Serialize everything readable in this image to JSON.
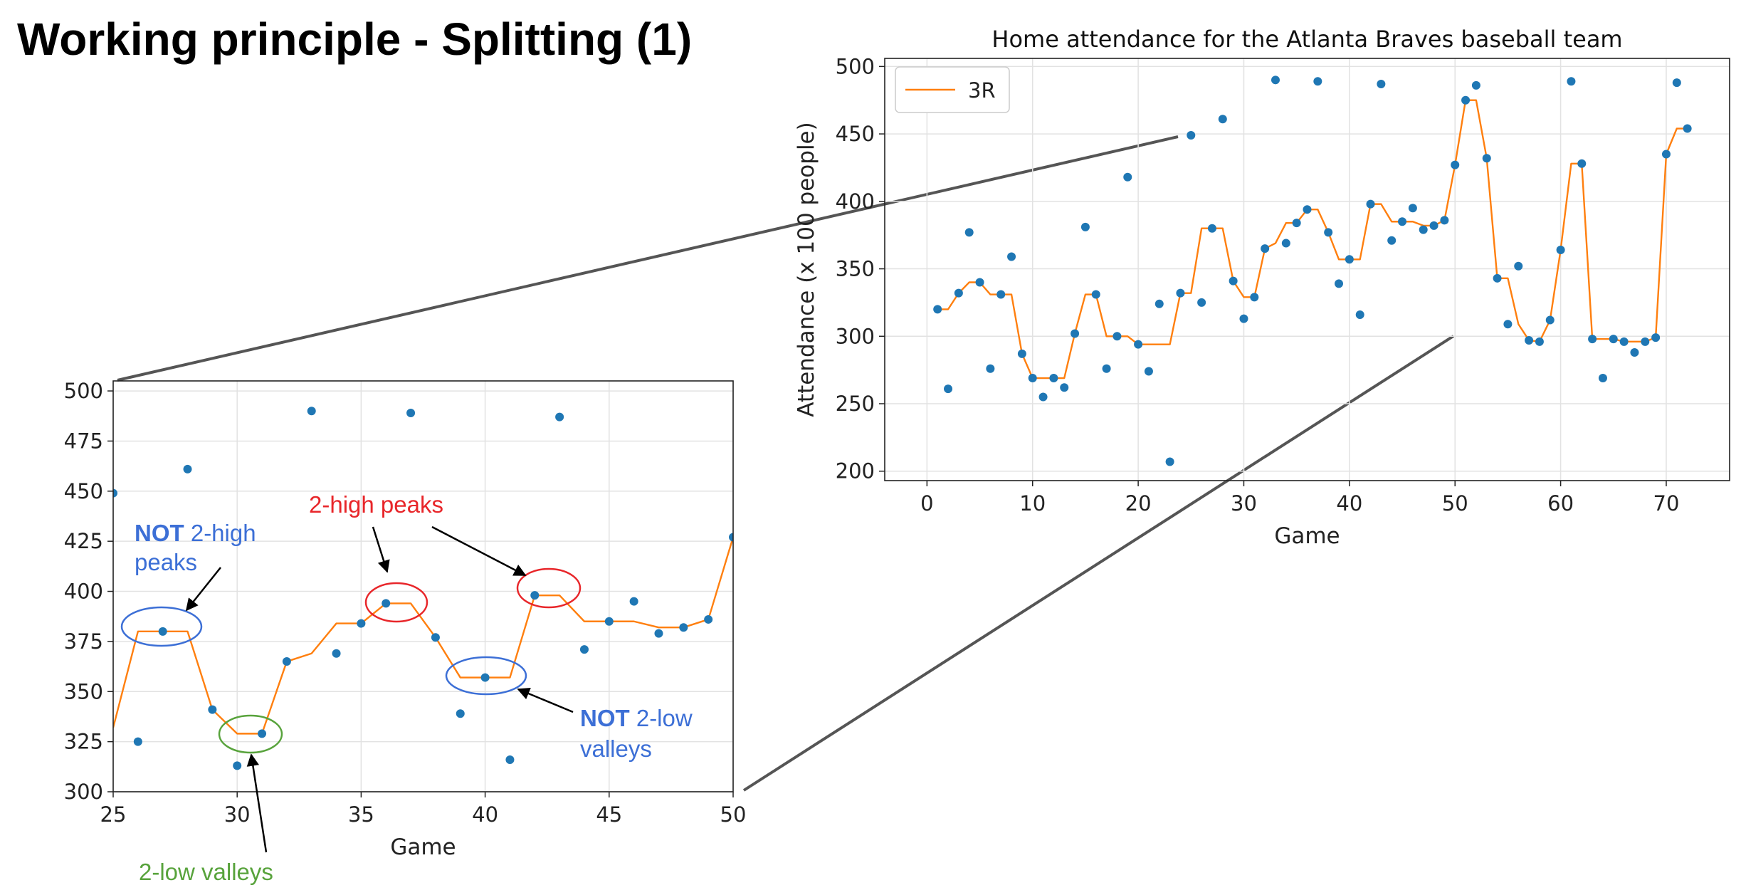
{
  "slide": {
    "title": "Working principle - Splitting (1)"
  },
  "colors": {
    "series_points": "#1f77b4",
    "series_line": "#ff7f0e",
    "annotation_blue": "#3c6fd6",
    "annotation_red": "#e8262a",
    "annotation_green": "#58a33c",
    "connector": "#555555"
  },
  "chart_data": [
    {
      "id": "main",
      "type": "scatter",
      "title": "Home attendance for the Atlanta Braves baseball team",
      "xlabel": "Game",
      "ylabel": "Attendance (x 100 people)",
      "xlim": [
        -4,
        76
      ],
      "ylim": [
        193,
        506
      ],
      "xticks": [
        "0",
        "10",
        "20",
        "30",
        "40",
        "50",
        "60",
        "70"
      ],
      "yticks": [
        "200",
        "250",
        "300",
        "350",
        "400",
        "450",
        "500"
      ],
      "grid": true,
      "legend": {
        "position": "upper left",
        "entries": [
          "3R"
        ]
      },
      "series": [
        {
          "kind": "points",
          "x": [
            1,
            2,
            3,
            4,
            5,
            6,
            7,
            8,
            9,
            10,
            11,
            12,
            13,
            14,
            15,
            16,
            17,
            18,
            19,
            20,
            21,
            22,
            23,
            24,
            25,
            26,
            27,
            28,
            29,
            30,
            31,
            32,
            33,
            34,
            35,
            36,
            37,
            38,
            39,
            40,
            41,
            42,
            43,
            44,
            45,
            46,
            47,
            48,
            49,
            50,
            51,
            52,
            53,
            54,
            55,
            56,
            57,
            58,
            59,
            60,
            61,
            62,
            63,
            64,
            65,
            66,
            67,
            68,
            69,
            70,
            71,
            72
          ],
          "y": [
            320,
            261,
            332,
            377,
            340,
            276,
            331,
            359,
            287,
            269,
            255,
            269,
            262,
            302,
            381,
            331,
            276,
            300,
            418,
            294,
            274,
            324,
            207,
            332,
            449,
            325,
            380,
            461,
            341,
            313,
            329,
            365,
            490,
            369,
            384,
            394,
            489,
            377,
            339,
            357,
            316,
            398,
            487,
            371,
            385,
            395,
            379,
            382,
            386,
            427,
            475,
            486,
            432,
            343,
            309,
            352,
            297,
            296,
            312,
            364,
            489,
            428,
            298,
            269,
            298,
            296,
            288,
            296,
            299,
            435,
            488,
            454
          ]
        },
        {
          "kind": "line",
          "name": "3R",
          "x": [
            1,
            2,
            3,
            4,
            5,
            6,
            7,
            8,
            9,
            10,
            11,
            12,
            13,
            14,
            15,
            16,
            17,
            18,
            19,
            20,
            21,
            22,
            23,
            24,
            25,
            26,
            27,
            28,
            29,
            30,
            31,
            32,
            33,
            34,
            35,
            36,
            37,
            38,
            39,
            40,
            41,
            42,
            43,
            44,
            45,
            46,
            47,
            48,
            49,
            50,
            51,
            52,
            53,
            54,
            55,
            56,
            57,
            58,
            59,
            60,
            61,
            62,
            63,
            64,
            65,
            66,
            67,
            68,
            69,
            70,
            71,
            72
          ],
          "y": [
            320,
            320,
            332,
            340,
            340,
            331,
            331,
            331,
            287,
            269,
            269,
            269,
            269,
            302,
            331,
            331,
            300,
            300,
            300,
            294,
            294,
            294,
            294,
            332,
            332,
            380,
            380,
            380,
            341,
            329,
            329,
            365,
            369,
            384,
            384,
            394,
            394,
            377,
            357,
            357,
            357,
            398,
            398,
            385,
            385,
            385,
            382,
            382,
            386,
            427,
            475,
            475,
            432,
            343,
            343,
            309,
            297,
            296,
            312,
            364,
            428,
            428,
            298,
            298,
            298,
            296,
            296,
            296,
            299,
            435,
            454,
            454
          ]
        }
      ]
    },
    {
      "id": "zoom",
      "type": "scatter",
      "xlabel": "Game",
      "ylabel": "",
      "xlim": [
        25,
        50
      ],
      "ylim": [
        300,
        505
      ],
      "xticks": [
        "25",
        "30",
        "35",
        "40",
        "45",
        "50"
      ],
      "yticks": [
        "300",
        "325",
        "350",
        "375",
        "400",
        "425",
        "450",
        "475",
        "500"
      ],
      "grid": true,
      "series": [
        {
          "kind": "points",
          "x": [
            25,
            26,
            27,
            28,
            29,
            30,
            31,
            32,
            33,
            34,
            35,
            36,
            37,
            38,
            39,
            40,
            41,
            42,
            43,
            44,
            45,
            46,
            47,
            48,
            49,
            50
          ],
          "y": [
            449,
            325,
            380,
            461,
            341,
            313,
            329,
            365,
            490,
            369,
            384,
            394,
            489,
            377,
            339,
            357,
            316,
            398,
            487,
            371,
            385,
            395,
            379,
            382,
            386,
            427
          ]
        },
        {
          "kind": "line",
          "name": "3R",
          "x": [
            25,
            26,
            27,
            28,
            29,
            30,
            31,
            32,
            33,
            34,
            35,
            36,
            37,
            38,
            39,
            40,
            41,
            42,
            43,
            44,
            45,
            46,
            47,
            48,
            49,
            50
          ],
          "y": [
            332,
            380,
            380,
            380,
            341,
            329,
            329,
            365,
            369,
            384,
            384,
            394,
            394,
            377,
            357,
            357,
            357,
            398,
            398,
            385,
            385,
            385,
            382,
            382,
            386,
            427
          ]
        }
      ]
    }
  ],
  "annotations": {
    "not_2high": {
      "bold": "NOT",
      "rest_line1": " 2-high",
      "line2": "peaks"
    },
    "two_high": "2-high peaks",
    "not_2low": {
      "bold": "NOT",
      "rest_line1": " 2-low",
      "line2": "valleys"
    },
    "two_low": "2-low valleys"
  }
}
